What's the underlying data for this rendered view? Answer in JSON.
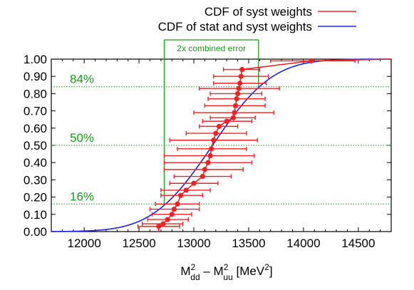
{
  "chart_data": {
    "type": "line",
    "xlim": [
      11700,
      14800
    ],
    "ylim": [
      0.0,
      1.0
    ],
    "x_ticks": [
      12000,
      12500,
      13000,
      13500,
      14000,
      14500
    ],
    "y_ticks": [
      "0.00",
      "0.10",
      "0.20",
      "0.30",
      "0.40",
      "0.50",
      "0.60",
      "0.70",
      "0.80",
      "0.90",
      "1.00"
    ],
    "xlabel": {
      "prefix1": "M",
      "sup1": "2",
      "sub1": "dd",
      "dash": " – ",
      "prefix2": "M",
      "sup2": "2",
      "sub2": "uu",
      "units_open": " [MeV",
      "units_sup": "2",
      "units_close": "]"
    },
    "legend_position": "top-right",
    "colors": {
      "syst": "#ee2222",
      "stat_syst": "#2222dd",
      "guide": "#1a9a1a"
    },
    "series": [
      {
        "name": "CDF of syst weights",
        "kind": "step-with-errorbars",
        "points": [
          {
            "x": 12680,
            "y": 0.03,
            "xerr": [
              12490,
              12870
            ]
          },
          {
            "x": 12720,
            "y": 0.045,
            "xerr": [
              12530,
              12900
            ]
          },
          {
            "x": 12760,
            "y": 0.07,
            "xerr": [
              12580,
              12950
            ]
          },
          {
            "x": 12800,
            "y": 0.1,
            "xerr": [
              12620,
              12980
            ]
          },
          {
            "x": 12820,
            "y": 0.13,
            "xerr": [
              12600,
              13050
            ]
          },
          {
            "x": 12850,
            "y": 0.16,
            "xerr": [
              12650,
              13050
            ]
          },
          {
            "x": 12880,
            "y": 0.21,
            "xerr": [
              12700,
              13080
            ]
          },
          {
            "x": 12930,
            "y": 0.24,
            "xerr": [
              12700,
              13150
            ]
          },
          {
            "x": 13000,
            "y": 0.28,
            "xerr": [
              12780,
              13220
            ]
          },
          {
            "x": 13080,
            "y": 0.32,
            "xerr": [
              12820,
              13340
            ]
          },
          {
            "x": 13100,
            "y": 0.36,
            "xerr": [
              12730,
              13450
            ]
          },
          {
            "x": 13130,
            "y": 0.4,
            "xerr": [
              12730,
              13530
            ]
          },
          {
            "x": 13150,
            "y": 0.44,
            "xerr": [
              12730,
              13550
            ]
          },
          {
            "x": 13160,
            "y": 0.48,
            "xerr": [
              12850,
              13480
            ]
          },
          {
            "x": 13180,
            "y": 0.53,
            "xerr": [
              12780,
              13580
            ]
          },
          {
            "x": 13200,
            "y": 0.57,
            "xerr": [
              12930,
              13480
            ]
          },
          {
            "x": 13230,
            "y": 0.61,
            "xerr": [
              13050,
              13400
            ]
          },
          {
            "x": 13300,
            "y": 0.64,
            "xerr": [
              13080,
              13530
            ]
          },
          {
            "x": 13360,
            "y": 0.66,
            "xerr": [
              13150,
              13560
            ]
          },
          {
            "x": 13370,
            "y": 0.69,
            "xerr": [
              13000,
              13730
            ]
          },
          {
            "x": 13380,
            "y": 0.73,
            "xerr": [
              13100,
              13650
            ]
          },
          {
            "x": 13390,
            "y": 0.77,
            "xerr": [
              13130,
              13650
            ]
          },
          {
            "x": 13400,
            "y": 0.8,
            "xerr": [
              13150,
              13620
            ]
          },
          {
            "x": 13410,
            "y": 0.83,
            "xerr": [
              13050,
              13780
            ]
          },
          {
            "x": 13420,
            "y": 0.86,
            "xerr": [
              13180,
              13660
            ]
          },
          {
            "x": 13430,
            "y": 0.9,
            "xerr": [
              13180,
              13680
            ]
          },
          {
            "x": 13440,
            "y": 0.94,
            "xerr": [
              13270,
              13600
            ]
          },
          {
            "x": 14070,
            "y": 0.99,
            "xerr": [
              13700,
              14470
            ]
          }
        ]
      },
      {
        "name": "CDF of stat and syst weights",
        "kind": "smooth-cdf",
        "mean": 13170,
        "sigma": 430
      }
    ],
    "annotations": {
      "percent_lines": [
        {
          "label": "84%",
          "y": 0.84
        },
        {
          "label": "50%",
          "y": 0.5
        },
        {
          "label": "16%",
          "y": 0.16
        }
      ],
      "bracket": {
        "label": "2x combined error",
        "x_left": 12730,
        "x_right": 13590
      }
    }
  }
}
